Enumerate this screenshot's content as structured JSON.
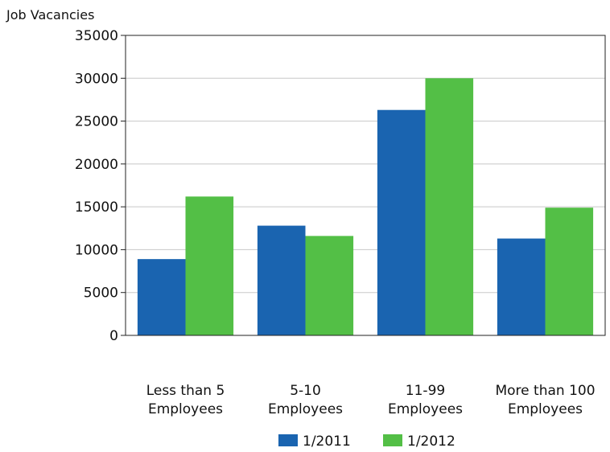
{
  "chart_data": {
    "type": "bar",
    "title": "",
    "xlabel": "",
    "ylabel": "Job Vacancies",
    "ylim": [
      0,
      35000
    ],
    "yticks": [
      0,
      5000,
      10000,
      15000,
      20000,
      25000,
      30000,
      35000
    ],
    "grid": true,
    "legend_position": "bottom",
    "categories": [
      [
        "Less than 5",
        "Employees"
      ],
      [
        "5-10",
        "Employees"
      ],
      [
        "11-99",
        "Employees"
      ],
      [
        "More than 100",
        "Employees"
      ]
    ],
    "series": [
      {
        "name": "1/2011",
        "color": "#1a64b0",
        "values": [
          8900,
          12800,
          26300,
          11300
        ]
      },
      {
        "name": "1/2012",
        "color": "#53bf46",
        "values": [
          16200,
          11600,
          30000,
          14900
        ]
      }
    ]
  }
}
